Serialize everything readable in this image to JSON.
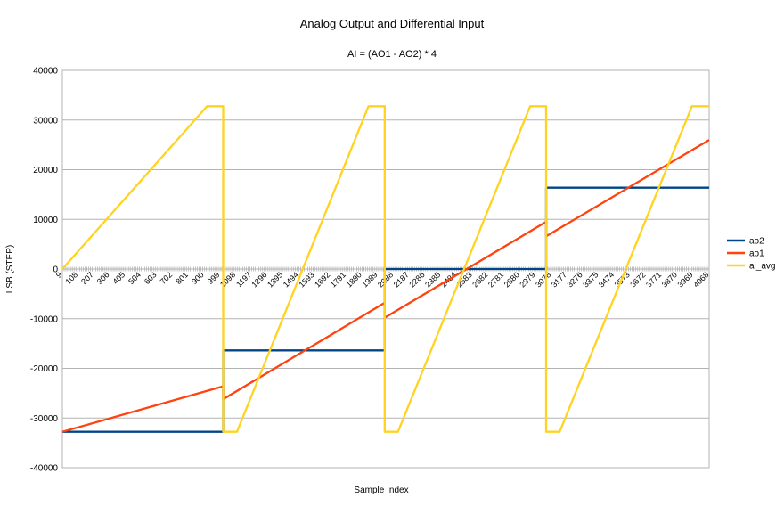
{
  "chart_data": {
    "type": "line",
    "title": "Analog Output and Differential Input",
    "subtitle": "AI = (AO1 - AO2) * 4",
    "xlabel": "Sample Index",
    "ylabel": "LSB (STEP)",
    "ylim": [
      -40000,
      40000
    ],
    "yticks": [
      40000,
      30000,
      20000,
      10000,
      0,
      -10000,
      -20000,
      -30000,
      -40000
    ],
    "xlim": [
      9,
      4068
    ],
    "xtick_labels": [
      "9",
      "108",
      "207",
      "306",
      "405",
      "504",
      "603",
      "702",
      "801",
      "900",
      "999",
      "1098",
      "1197",
      "1296",
      "1395",
      "1494",
      "1593",
      "1692",
      "1791",
      "1890",
      "1989",
      "2088",
      "2187",
      "2286",
      "2385",
      "2484",
      "2583",
      "2682",
      "2781",
      "2880",
      "2979",
      "3078",
      "3177",
      "3276",
      "3375",
      "3474",
      "3573",
      "3672",
      "3771",
      "3870",
      "3969",
      "4068"
    ],
    "grid": "horizontal",
    "legend_position": "right",
    "series": [
      {
        "name": "ao2",
        "color": "#004586",
        "x": [
          9,
          1018,
          1018,
          2032,
          2032,
          3045,
          3045,
          4068
        ],
        "y": [
          -32768,
          -32768,
          -16384,
          -16384,
          0,
          0,
          16384,
          16384
        ]
      },
      {
        "name": "ao1",
        "color": "#ff420e",
        "x": [
          9,
          1018,
          1018,
          2032,
          2032,
          3045,
          3045,
          4068
        ],
        "y": [
          -32768,
          -23600,
          -26200,
          -6800,
          -9800,
          9500,
          6600,
          26000
        ]
      },
      {
        "name": "ai_avg",
        "color": "#ffd320",
        "x": [
          9,
          917,
          1018,
          1018,
          1105,
          1930,
          2032,
          2032,
          2115,
          2945,
          3045,
          3045,
          3130,
          3960,
          4068
        ],
        "y": [
          0,
          32767,
          32767,
          -32768,
          -32768,
          32767,
          32767,
          -32768,
          -32768,
          32767,
          32767,
          -32768,
          -32768,
          32767,
          32767
        ]
      }
    ]
  }
}
